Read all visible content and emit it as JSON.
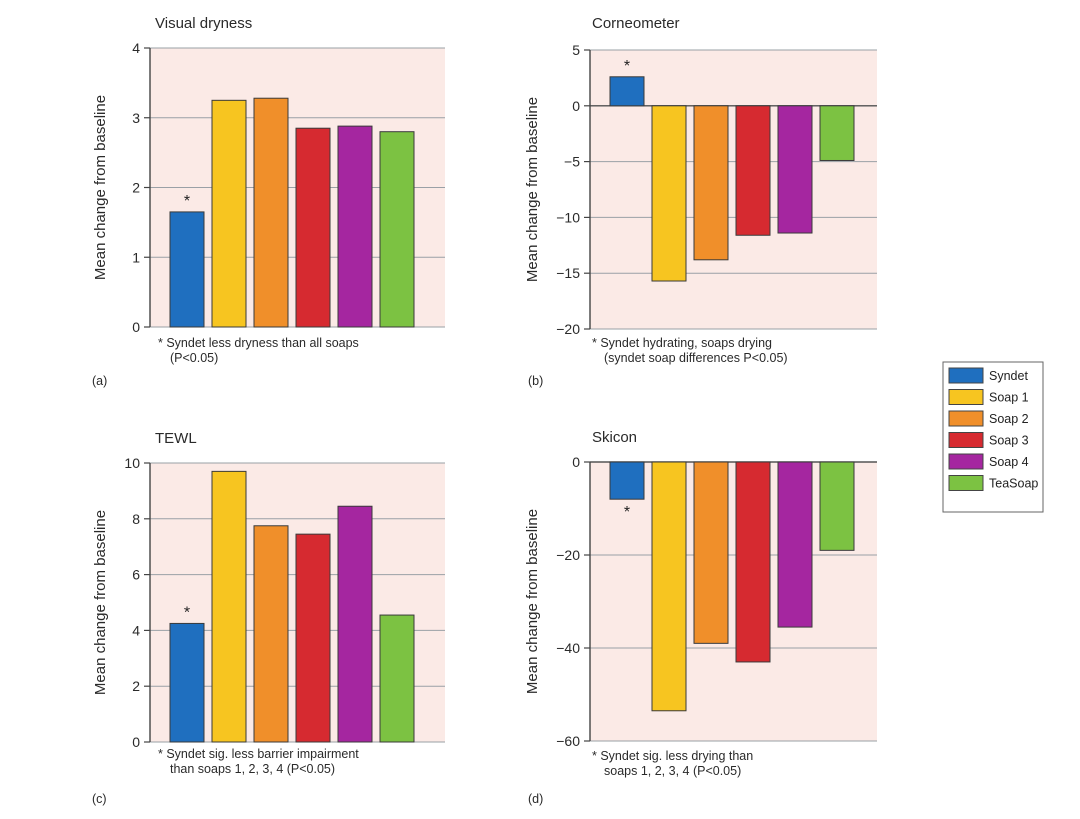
{
  "colors": {
    "Syndet": "#1f6fbf",
    "Soap 1": "#f7c520",
    "Soap 2": "#f08f2a",
    "Soap 3": "#d62a30",
    "Soap 4": "#a526a0",
    "TeaSoap": "#7cc242",
    "plot_bg": "#fbeae6",
    "grid": "#9aa0a6"
  },
  "legend": {
    "items": [
      {
        "label": "Syndet",
        "color": "#1f6fbf"
      },
      {
        "label": "Soap 1",
        "color": "#f7c520"
      },
      {
        "label": "Soap 2",
        "color": "#f08f2a"
      },
      {
        "label": "Soap 3",
        "color": "#d62a30"
      },
      {
        "label": "Soap 4",
        "color": "#a526a0"
      },
      {
        "label": "TeaSoap",
        "color": "#7cc242"
      }
    ]
  },
  "chart_data": [
    {
      "type": "bar",
      "panel": "(a)",
      "title": "Visual dryness",
      "ylabel": "Mean change from baseline",
      "categories": [
        "Syndet",
        "Soap 1",
        "Soap 2",
        "Soap 3",
        "Soap 4",
        "TeaSoap"
      ],
      "values": [
        1.65,
        3.25,
        3.28,
        2.85,
        2.88,
        2.8
      ],
      "ylim": [
        0,
        4
      ],
      "yticks": [
        0,
        1,
        2,
        3,
        4
      ],
      "yticklabels": [
        "0",
        "1",
        "2",
        "3",
        "4"
      ],
      "star_index": 0,
      "star_text": "*",
      "note_lines": [
        "* Syndet less dryness than all soaps",
        "(P<0.05)"
      ],
      "panel_label": "(a)"
    },
    {
      "type": "bar",
      "panel": "(b)",
      "title": "Corneometer",
      "ylabel": "Mean change from baseline",
      "categories": [
        "Syndet",
        "Soap 1",
        "Soap 2",
        "Soap 3",
        "Soap 4",
        "TeaSoap"
      ],
      "values": [
        2.6,
        -15.7,
        -13.8,
        -11.6,
        -11.4,
        -4.9
      ],
      "ylim": [
        -20,
        5
      ],
      "yticks": [
        -20,
        -15,
        -10,
        -5,
        0,
        5
      ],
      "yticklabels": [
        "−20",
        "−15",
        "−10",
        "−5",
        "0",
        "5"
      ],
      "star_index": 0,
      "star_text": "*",
      "note_lines": [
        "* Syndet hydrating, soaps drying",
        "(syndet soap differences P<0.05)"
      ],
      "panel_label": "(b)"
    },
    {
      "type": "bar",
      "panel": "(c)",
      "title": "TEWL",
      "ylabel": "Mean change from baseline",
      "categories": [
        "Syndet",
        "Soap 1",
        "Soap 2",
        "Soap 3",
        "Soap 4",
        "TeaSoap"
      ],
      "values": [
        4.25,
        9.7,
        7.75,
        7.45,
        8.45,
        4.55
      ],
      "ylim": [
        0,
        10
      ],
      "yticks": [
        0,
        2,
        4,
        6,
        8,
        10
      ],
      "yticklabels": [
        "0",
        "2",
        "4",
        "6",
        "8",
        "10"
      ],
      "star_index": 0,
      "star_text": "*",
      "note_lines": [
        "* Syndet sig. less barrier impairment",
        "than soaps 1, 2, 3, 4 (P<0.05)"
      ],
      "panel_label": "(c)"
    },
    {
      "type": "bar",
      "panel": "(d)",
      "title": "Skicon",
      "ylabel": "Mean change from baseline",
      "categories": [
        "Syndet",
        "Soap 1",
        "Soap 2",
        "Soap 3",
        "Soap 4",
        "TeaSoap"
      ],
      "values": [
        -8,
        -53.5,
        -39,
        -43,
        -35.5,
        -19
      ],
      "ylim": [
        -60,
        0
      ],
      "yticks": [
        -60,
        -40,
        -20,
        0
      ],
      "yticklabels": [
        "−60",
        "−40",
        "−20",
        "0"
      ],
      "star_index": 0,
      "star_text": "*",
      "note_lines": [
        "* Syndet sig. less drying than",
        "soaps 1, 2, 3, 4  (P<0.05)"
      ],
      "panel_label": "(d)"
    }
  ]
}
